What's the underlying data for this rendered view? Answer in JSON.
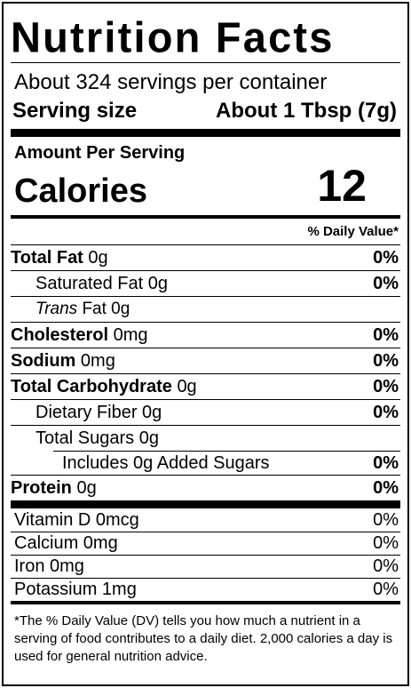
{
  "title": "Nutrition Facts",
  "servings_per_container": "About 324 servings per container",
  "serving_size": {
    "label": "Serving size",
    "value": "About 1 Tbsp (7g)"
  },
  "amount_per_serving": "Amount Per Serving",
  "calories": {
    "label": "Calories",
    "value": "12"
  },
  "daily_value_header": "% Daily Value*",
  "nutrients": {
    "total_fat": {
      "label": "Total Fat",
      "amount": "0g",
      "dv": "0%"
    },
    "saturated_fat": {
      "label": "Saturated Fat 0g",
      "dv": "0%"
    },
    "trans_fat": {
      "label_italic": "Trans",
      "label_rest": " Fat 0g"
    },
    "cholesterol": {
      "label": "Cholesterol",
      "amount": "0mg",
      "dv": "0%"
    },
    "sodium": {
      "label": "Sodium",
      "amount": "0mg",
      "dv": "0%"
    },
    "total_carb": {
      "label": "Total Carbohydrate",
      "amount": "0g",
      "dv": "0%"
    },
    "dietary_fiber": {
      "label": "Dietary Fiber 0g",
      "dv": "0%"
    },
    "total_sugars": {
      "label": "Total Sugars 0g"
    },
    "added_sugars": {
      "label": "Includes 0g Added Sugars",
      "dv": "0%"
    },
    "protein": {
      "label": "Protein",
      "amount": "0g",
      "dv": "0%"
    }
  },
  "vitamins": [
    {
      "label": "Vitamin D 0mcg",
      "dv": "0%"
    },
    {
      "label": "Calcium 0mg",
      "dv": "0%"
    },
    {
      "label": "Iron 0mg",
      "dv": "0%"
    },
    {
      "label": "Potassium 1mg",
      "dv": "0%"
    }
  ],
  "footnote": "*The % Daily Value (DV) tells you how much a nutrient in a serving of food contributes to a daily diet. 2,000 calories a day is used for general nutrition advice."
}
